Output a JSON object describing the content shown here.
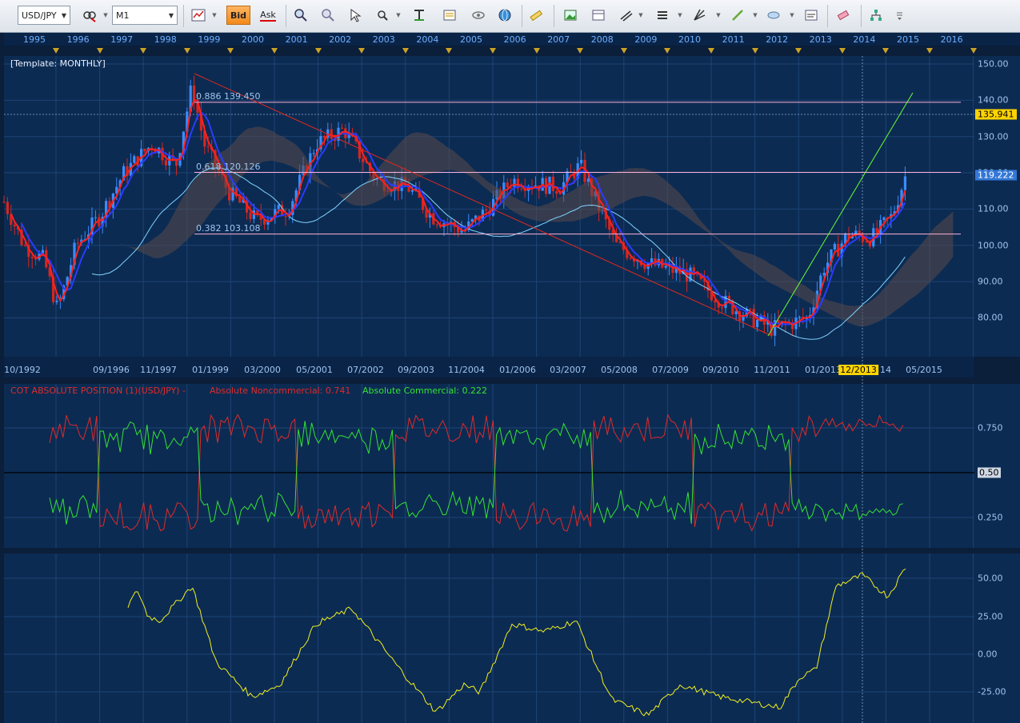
{
  "toolbar": {
    "symbol": "USD/JPY",
    "timeframe": "M1",
    "bid_label": "Bid",
    "ask_label": "Ask",
    "icons": [
      "chart-type-icon",
      "bid-icon",
      "ask-icon",
      "zoom-in-icon",
      "zoom-out-icon",
      "cursor-icon",
      "magnify-icon",
      "fibo-icon",
      "news-icon",
      "eye-icon",
      "globe-icon",
      "ruler-icon",
      "picture-icon",
      "template-icon",
      "trendline-tools-icon",
      "lines-icon",
      "fan-icon",
      "pen-icon",
      "ellipse-icon",
      "text-icon",
      "eraser-icon",
      "tree-icon",
      "more-icon"
    ]
  },
  "main_chart": {
    "template_label": "[Template: MONTHLY]",
    "years_top": [
      "1995",
      "1996",
      "1997",
      "1998",
      "1999",
      "2000",
      "2001",
      "2002",
      "2003",
      "2004",
      "2005",
      "2006",
      "2007",
      "2008",
      "2009",
      "2010",
      "2011",
      "2012",
      "2013",
      "2014",
      "2015",
      "2016"
    ],
    "price_axis": [
      "150.00",
      "140.00",
      "130.00",
      "120.00",
      "110.00",
      "100.00",
      "90.00",
      "80.00"
    ],
    "date_axis": [
      "10/1992",
      "09/1996",
      "11/1997",
      "01/1999",
      "03/2000",
      "05/2001",
      "07/2002",
      "09/2003",
      "11/2004",
      "01/2006",
      "03/2007",
      "05/2008",
      "07/2009",
      "09/2010",
      "11/2011",
      "01/2013",
      "12/2013",
      "14",
      "05/2015"
    ],
    "fib_levels": [
      {
        "label": "0.886 139.450",
        "value": 139.45
      },
      {
        "label": "0.618 120.126",
        "value": 120.126
      },
      {
        "label": "0.382 103.108",
        "value": 103.108
      }
    ],
    "current_price": "119.222",
    "crosshair_price": "135.941",
    "crosshair_date": "12/2013",
    "colors": {
      "bull": "#3a8cff",
      "bear": "#d7261e",
      "ma_fast": "#ff2020",
      "ma_slow": "#2a3cff",
      "kijun": "#7fd4ff",
      "trend": "#66ff33",
      "fib": "#ffb0d8"
    }
  },
  "cot_panel": {
    "title": "COT ABSOLUTE POSITION (1)(USD/JPY) -",
    "noncommercial_label": "Absolute Noncommercial: 0.741",
    "commercial_label": "Absolute Commercial: 0.222",
    "axis": [
      "0.750",
      "0.50",
      "0.250"
    ],
    "colors": {
      "noncommercial": "#e02a2a",
      "commercial": "#34e334"
    }
  },
  "osc_panel": {
    "axis": [
      "50.00",
      "25.00",
      "0.00",
      "-25.00"
    ],
    "color": "#f0f020"
  }
}
